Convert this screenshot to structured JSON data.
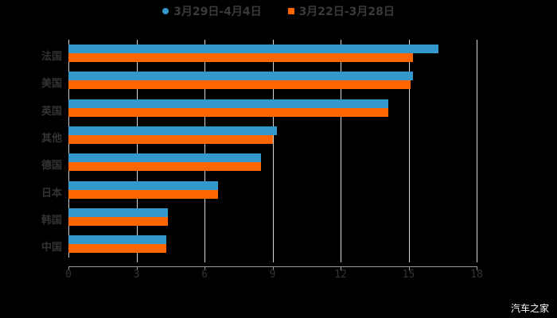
{
  "chart_data": {
    "type": "bar",
    "orientation": "horizontal",
    "title": "",
    "categories": [
      "法国",
      "美国",
      "英国",
      "其他",
      "德国",
      "日本",
      "韩国",
      "中国"
    ],
    "series": [
      {
        "name": "3月29日-4月4日",
        "color": "#3399cc",
        "values": [
          16.3,
          15.2,
          14.1,
          9.2,
          8.5,
          6.6,
          4.4,
          4.3
        ]
      },
      {
        "name": "3月22日-3月28日",
        "color": "#ff6600",
        "values": [
          15.2,
          15.1,
          14.1,
          9.0,
          8.5,
          6.6,
          4.4,
          4.3
        ]
      }
    ],
    "xlabel": "",
    "ylabel": "",
    "xlim": [
      0,
      18
    ],
    "xticks": [
      "0",
      "3",
      "6",
      "9",
      "12",
      "15",
      "18"
    ],
    "grid": true,
    "legend_position": "top"
  },
  "legend": {
    "s1": "3月29日-4月4日",
    "s2": "3月22日-3月28日"
  },
  "watermark": "汽车之家"
}
